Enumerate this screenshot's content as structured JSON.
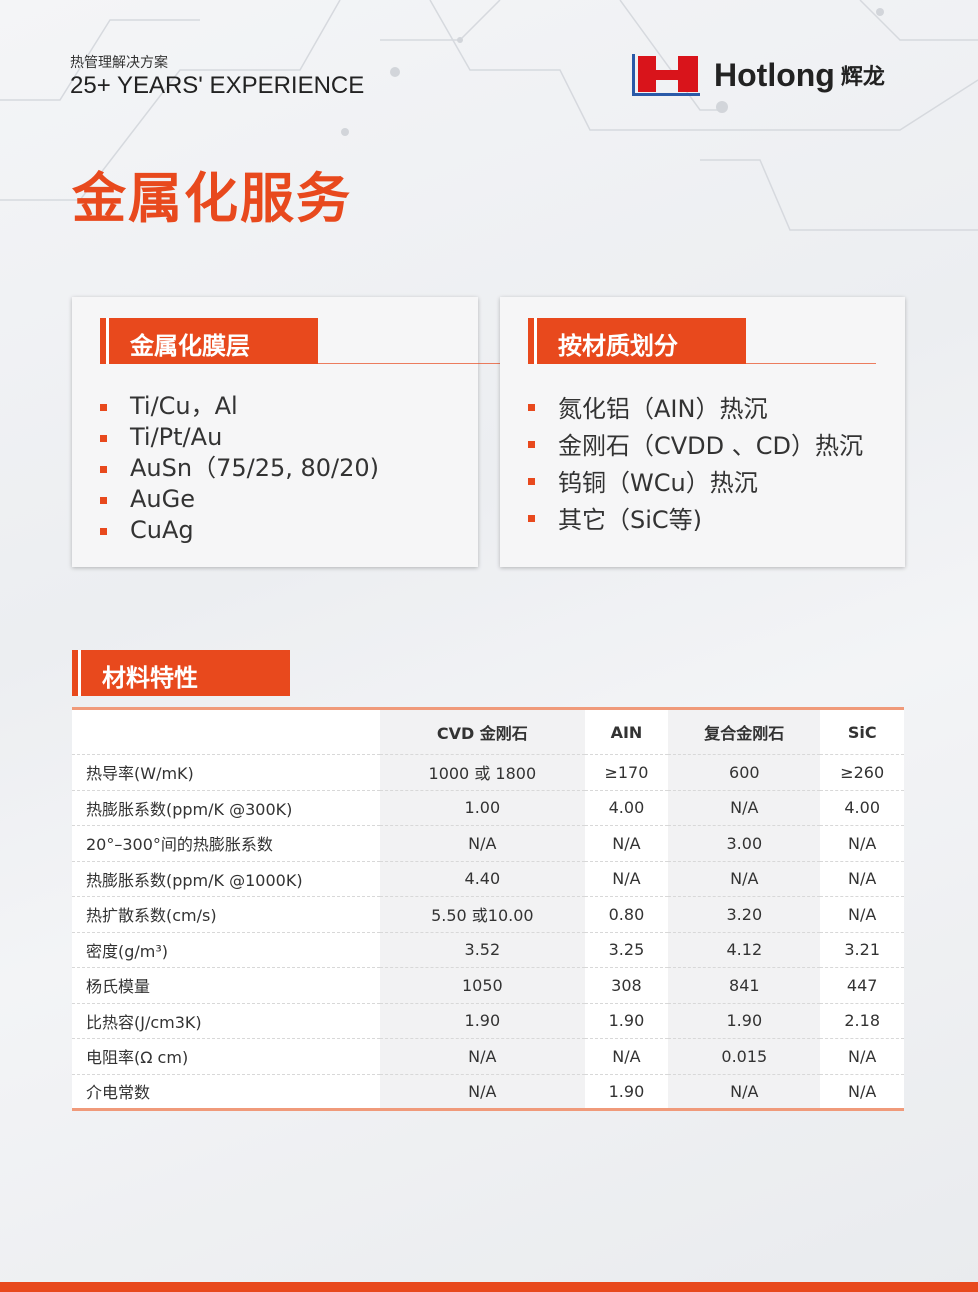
{
  "header": {
    "subtitle": "热管理解决方案",
    "experience": "25+ YEARS' EXPERIENCE",
    "logo_text": "Hotlong",
    "logo_cn": "辉龙"
  },
  "title": "金属化服务",
  "cards": [
    {
      "heading": "金属化膜层",
      "items": [
        "Ti/Cu，Al",
        "Ti/Pt/Au",
        "AuSn（75/25, 80/20)",
        "AuGe",
        "CuAg"
      ]
    },
    {
      "heading": "按材质划分",
      "items": [
        "氮化铝（AIN）热沉",
        "金刚石（CVDD 、CD）热沉",
        "钨铜（WCu）热沉",
        "其它（SiC等)"
      ]
    }
  ],
  "section_title": "材料特性",
  "table": {
    "headers": [
      "",
      "CVD 金刚石",
      "AIN",
      "复合金刚石",
      "SiC"
    ],
    "rows": [
      [
        "热导率(W/mK)",
        "1000 或 1800",
        "≥170",
        "600",
        "≥260"
      ],
      [
        "热膨胀系数(ppm/K @300K)",
        "1.00",
        "4.00",
        "N/A",
        "4.00"
      ],
      [
        "20°–300°间的热膨胀系数",
        "N/A",
        "N/A",
        "3.00",
        "N/A"
      ],
      [
        "热膨胀系数(ppm/K @1000K)",
        "4.40",
        "N/A",
        "N/A",
        "N/A"
      ],
      [
        "热扩散系数(cm/s)",
        "5.50 或10.00",
        "0.80",
        "3.20",
        "N/A"
      ],
      [
        "密度(g/m³)",
        "3.52",
        "3.25",
        "4.12",
        "3.21"
      ],
      [
        "杨氏模量",
        "1050",
        "308",
        "841",
        "447"
      ],
      [
        "比热容(J/cm3K)",
        "1.90",
        "1.90",
        "1.90",
        "2.18"
      ],
      [
        "电阻率(Ω cm)",
        "N/A",
        "N/A",
        "0.015",
        "N/A"
      ],
      [
        "介电常数",
        "N/A",
        "1.90",
        "N/A",
        "N/A"
      ]
    ]
  },
  "colors": {
    "accent": "#e8491d",
    "logo_red": "#d9141b",
    "logo_blue": "#2a5aa8"
  }
}
